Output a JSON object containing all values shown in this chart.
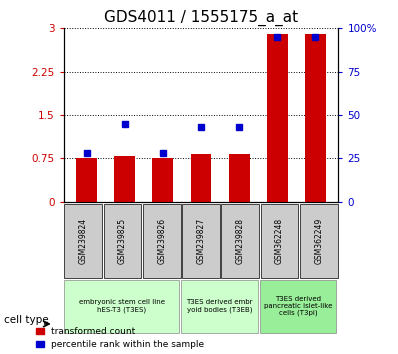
{
  "title": "GDS4011 / 1555175_a_at",
  "samples": [
    "GSM239824",
    "GSM239825",
    "GSM239826",
    "GSM239827",
    "GSM239828",
    "GSM362248",
    "GSM362249"
  ],
  "bar_values": [
    0.75,
    0.8,
    0.75,
    0.82,
    0.82,
    2.9,
    2.9
  ],
  "scatter_percentile": [
    28,
    45,
    28,
    43,
    43,
    95,
    95
  ],
  "ylim_left": [
    0,
    3
  ],
  "ylim_right": [
    0,
    100
  ],
  "yticks_left": [
    0,
    0.75,
    1.5,
    2.25,
    3
  ],
  "yticks_right": [
    0,
    25,
    50,
    75,
    100
  ],
  "ytick_labels_left": [
    "0",
    "0.75",
    "1.5",
    "2.25",
    "3"
  ],
  "ytick_labels_right": [
    "0",
    "25",
    "50",
    "75",
    "100%"
  ],
  "bar_color": "#cc0000",
  "scatter_color": "#0000cc",
  "cell_type_groups": [
    {
      "label": "embryonic stem cell line\nhES-T3 (T3ES)",
      "start": 0,
      "end": 2,
      "color": "#ccffcc"
    },
    {
      "label": "T3ES derived embr\nyoid bodies (T3EB)",
      "start": 3,
      "end": 4,
      "color": "#ccffcc"
    },
    {
      "label": "T3ES derived\npancreatic islet-like\ncells (T3pi)",
      "start": 5,
      "end": 6,
      "color": "#99ee99"
    }
  ],
  "legend_labels": [
    "transformed count",
    "percentile rank within the sample"
  ],
  "legend_colors": [
    "#cc0000",
    "#0000cc"
  ],
  "cell_type_label": "cell type",
  "bar_width": 0.55,
  "title_fontsize": 11,
  "tick_fontsize": 7.5,
  "sample_bg_color": "#cccccc"
}
